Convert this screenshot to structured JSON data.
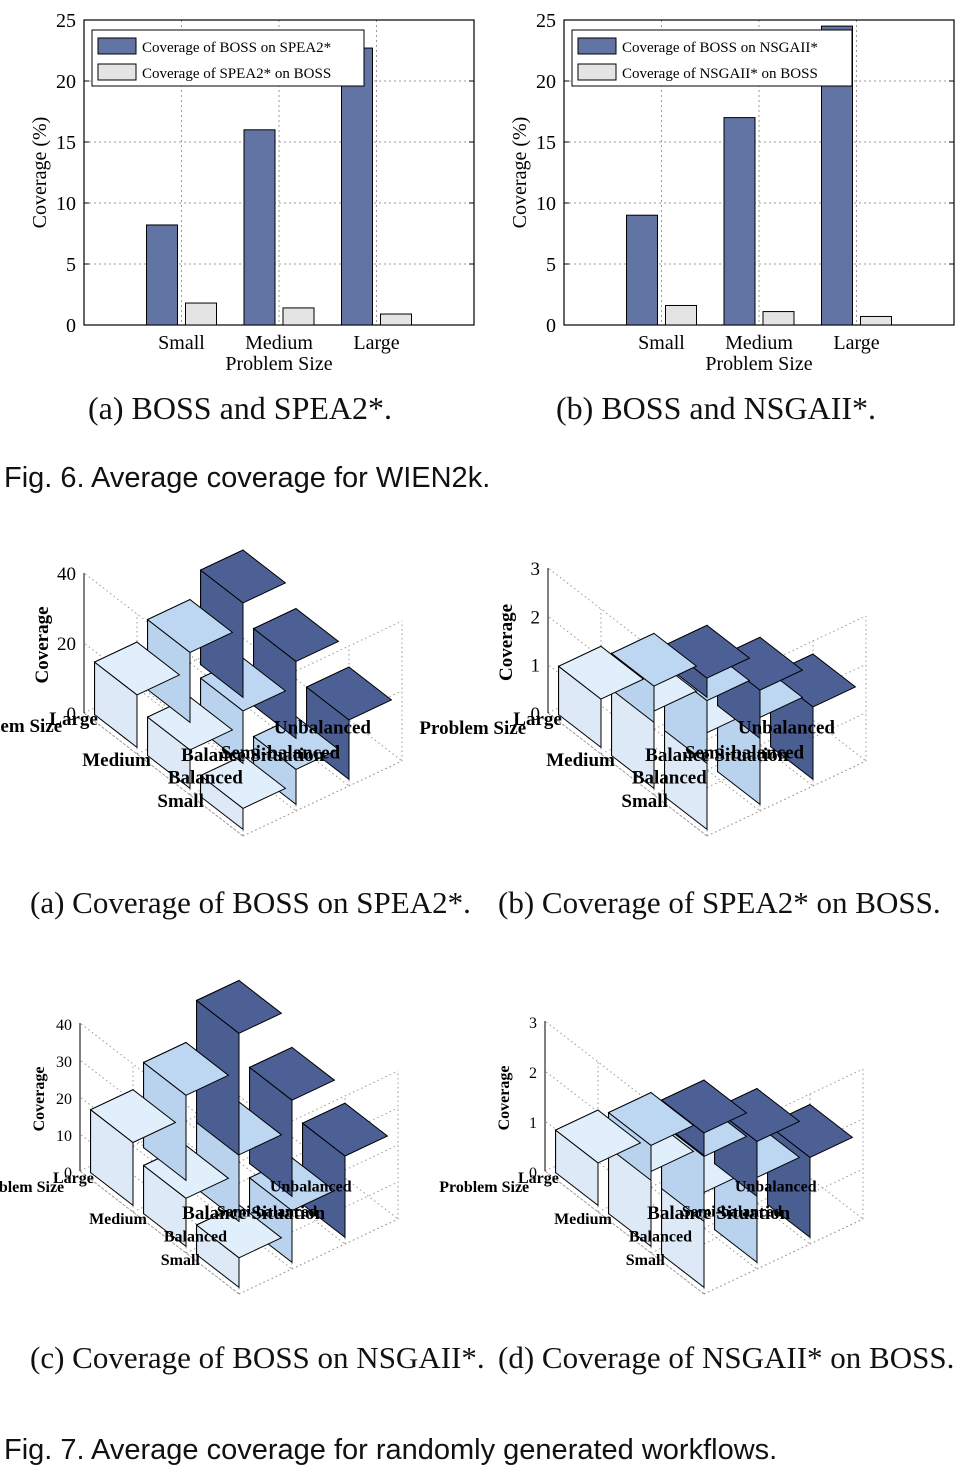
{
  "fig6": {
    "caption": "Fig. 6. Average coverage for WIEN2k.",
    "ylabel": "Coverage (%)",
    "xlabel": "Problem Size",
    "charts": [
      {
        "subcaption": "(a) BOSS and SPEA2*.",
        "type": "bar",
        "categories": [
          "Small",
          "Medium",
          "Large"
        ],
        "ylim": [
          0,
          25
        ],
        "yticks": [
          0,
          5,
          10,
          15,
          20,
          25
        ],
        "grid": true,
        "legend_position": "top-left",
        "series": [
          {
            "name": "Coverage of BOSS on SPEA2*",
            "values": [
              8.2,
              16.0,
              22.7
            ],
            "color": "#6274a3"
          },
          {
            "name": "Coverage of SPEA2* on BOSS",
            "values": [
              1.8,
              1.4,
              0.9
            ],
            "color": "#e4e4e4"
          }
        ]
      },
      {
        "subcaption": "(b) BOSS and NSGAII*.",
        "type": "bar",
        "categories": [
          "Small",
          "Medium",
          "Large"
        ],
        "ylim": [
          0,
          25
        ],
        "yticks": [
          0,
          5,
          10,
          15,
          20,
          25
        ],
        "grid": true,
        "legend_position": "top-left",
        "series": [
          {
            "name": "Coverage of BOSS on NSGAII*",
            "values": [
              9.0,
              17.0,
              24.5
            ],
            "color": "#6274a3"
          },
          {
            "name": "Coverage of NSGAII* on BOSS",
            "values": [
              1.6,
              1.1,
              0.7
            ],
            "color": "#e4e4e4"
          }
        ]
      }
    ]
  },
  "fig7": {
    "caption": "Fig. 7. Average coverage for randomly generated workflows.",
    "zlabel": "Coverage",
    "size_axis_label": "Problem Size",
    "balance_axis_label": "Balance Situation",
    "size_categories": [
      "Small",
      "Medium",
      "Large"
    ],
    "balance_categories": [
      "Balanced",
      "Semi-balanced",
      "Unbalanced"
    ],
    "bar_colors": {
      "Balanced": "#dde9f7",
      "Semi-balanced": "#b9d3ee",
      "Unbalanced": "#4b5e92"
    },
    "charts": [
      {
        "subcaption": "(a) Coverage of BOSS on SPEA2*.",
        "type": "bar3d",
        "zlim": [
          0,
          40
        ],
        "zticks": [
          0,
          20,
          40
        ],
        "values": {
          "Small": [
            6,
            10,
            17
          ],
          "Medium": [
            11,
            15,
            22
          ],
          "Large": [
            15,
            20,
            27
          ]
        }
      },
      {
        "subcaption": "(b) Coverage of SPEA2* on BOSS.",
        "type": "bar3d",
        "zlim": [
          0,
          3
        ],
        "zticks": [
          0,
          1,
          2,
          3
        ],
        "values": {
          "Small": [
            2.0,
            1.8,
            1.5
          ],
          "Medium": [
            1.6,
            1.3,
            1.0
          ],
          "Large": [
            1.0,
            0.75,
            0.4
          ]
        }
      },
      {
        "subcaption": "(c) Coverage of BOSS on NSGAII*.",
        "type": "bar3d",
        "zlim": [
          0,
          40
        ],
        "zticks": [
          0,
          10,
          20,
          30,
          40
        ],
        "values": {
          "Small": [
            8,
            14,
            22
          ],
          "Medium": [
            13,
            18,
            26
          ],
          "Large": [
            17,
            23,
            33
          ]
        }
      },
      {
        "subcaption": "(d) Coverage of NSGAII* on BOSS.",
        "type": "bar3d",
        "zlim": [
          0,
          3
        ],
        "zticks": [
          0,
          1,
          2,
          3
        ],
        "values": {
          "Small": [
            1.9,
            1.7,
            1.6
          ],
          "Medium": [
            1.5,
            1.3,
            1.1
          ],
          "Large": [
            0.85,
            0.7,
            0.45
          ]
        }
      }
    ]
  }
}
